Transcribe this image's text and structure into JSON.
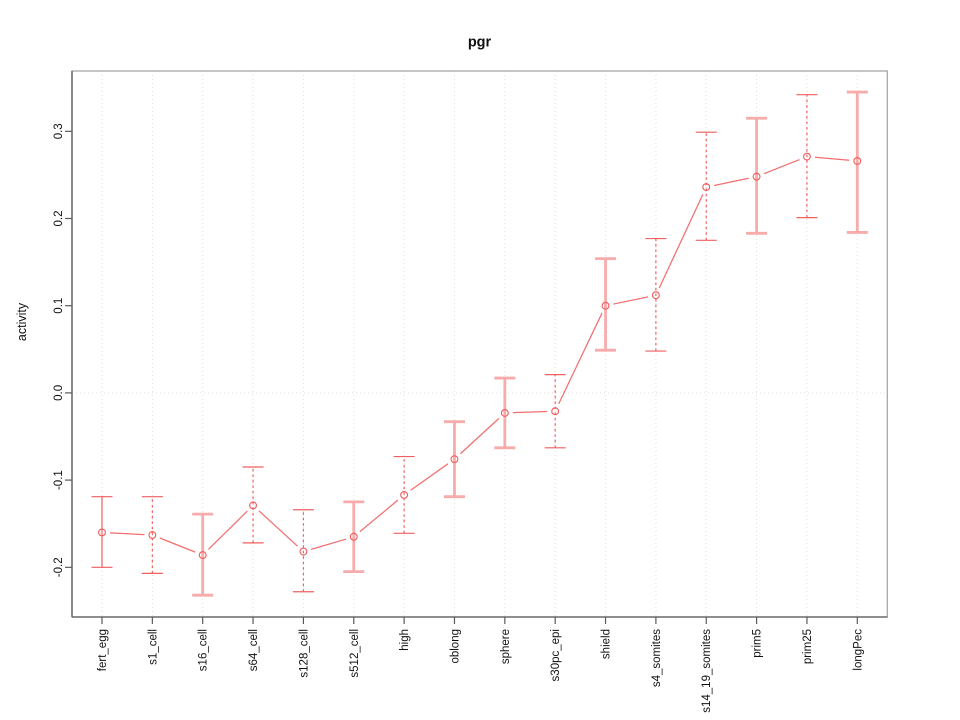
{
  "figure": {
    "title": "pgr",
    "y_axis_label": "activity"
  },
  "chart_data": {
    "type": "line",
    "title": "pgr",
    "xlabel": "",
    "ylabel": "activity",
    "legend": "none",
    "point_marker": "open-circle",
    "error_bars": true,
    "categories": [
      "fert_egg",
      "s1_cell",
      "s16_cell",
      "s64_cell",
      "s128_cell",
      "s512_cell",
      "high",
      "oblong",
      "sphere",
      "s30pc_epi",
      "shield",
      "s4_somites",
      "s14_19_somites",
      "prim5",
      "prim25",
      "longPec"
    ],
    "series": [
      {
        "name": "pgr",
        "values": [
          -0.16,
          -0.163,
          -0.186,
          -0.129,
          -0.182,
          -0.165,
          -0.117,
          -0.076,
          -0.023,
          -0.021,
          0.1,
          0.112,
          0.236,
          0.248,
          0.271,
          0.266
        ],
        "ci_low": [
          -0.2,
          -0.207,
          -0.232,
          -0.172,
          -0.228,
          -0.205,
          -0.161,
          -0.119,
          -0.063,
          -0.063,
          0.049,
          0.048,
          0.175,
          0.183,
          0.201,
          0.184
        ],
        "ci_high": [
          -0.119,
          -0.119,
          -0.139,
          -0.085,
          -0.134,
          -0.125,
          -0.073,
          -0.033,
          0.017,
          0.021,
          0.154,
          0.177,
          0.299,
          0.315,
          0.342,
          0.345
        ]
      }
    ],
    "error_bar_styles": [
      "solid",
      "dashed",
      "pale",
      "dashed",
      "dashed",
      "pale",
      "dashed",
      "pale",
      "pale",
      "dashed",
      "pale",
      "dashed",
      "dashed",
      "pale",
      "dashed",
      "pale"
    ],
    "y_ticks": [
      -0.2,
      -0.1,
      0,
      0.1,
      0.2,
      0.3
    ],
    "y_tick_labels": [
      "-0.2",
      "-0.1",
      "0.0",
      "0.1",
      "0.2",
      "0.3"
    ],
    "ylim": [
      -0.26,
      0.37
    ],
    "grid": {
      "vertical_gridlines": "dotted line at each category",
      "horizontal_gridline_at": 0,
      "style": "dotted"
    },
    "colors": {
      "series": "#f15f5f",
      "error_bar_pale": "#f7abab",
      "gridline": "#dedede",
      "box": "#a8a8a8",
      "axis": "#5a5a5a",
      "text": "#111111",
      "background": "#ffffff"
    }
  }
}
